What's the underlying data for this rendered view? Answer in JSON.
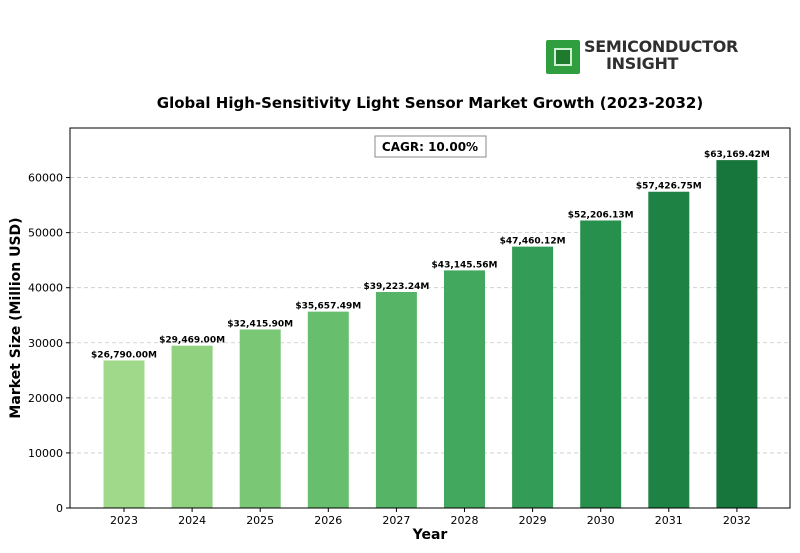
{
  "logo": {
    "line1": "SEMICONDUCTOR",
    "line2": "INSIGHT"
  },
  "chart_data": {
    "type": "bar",
    "title": "Global High-Sensitivity Light Sensor Market Growth (2023-2032)",
    "xlabel": "Year",
    "ylabel": "Market Size (Million USD)",
    "categories": [
      "2023",
      "2024",
      "2025",
      "2026",
      "2027",
      "2028",
      "2029",
      "2030",
      "2031",
      "2032"
    ],
    "values": [
      26790.0,
      29469.0,
      32415.9,
      35657.49,
      39223.24,
      43145.56,
      47460.12,
      52206.13,
      57426.75,
      63169.42
    ],
    "data_labels": [
      "$26,790.00M",
      "$29,469.00M",
      "$32,415.90M",
      "$35,657.49M",
      "$39,223.24M",
      "$43,145.56M",
      "$47,460.12M",
      "$52,206.13M",
      "$57,426.75M",
      "$63,169.42M"
    ],
    "annotation": "CAGR: 10.00%",
    "ylim": [
      0,
      69000
    ],
    "yticks": [
      0,
      10000,
      20000,
      30000,
      40000,
      50000,
      60000
    ],
    "grid": true,
    "colors": [
      "#a1d98b",
      "#8fd17f",
      "#7ac875",
      "#67bf6d",
      "#55b466",
      "#42a85e",
      "#339c56",
      "#27904d",
      "#1d8243",
      "#16763b"
    ]
  }
}
